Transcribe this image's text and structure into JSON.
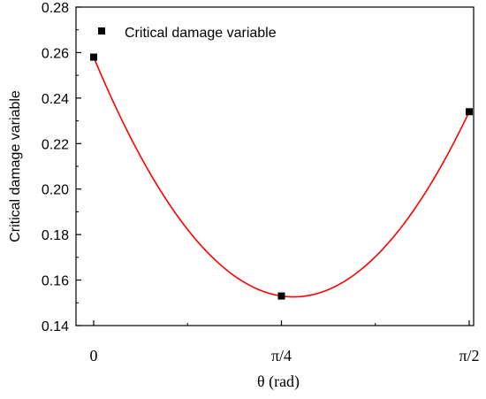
{
  "chart_data": {
    "type": "scatter",
    "title": "",
    "xlabel": "θ (rad)",
    "ylabel": "Critical damage variable",
    "x_categories": [
      "0",
      "π/4",
      "π/2"
    ],
    "xlim": [
      0,
      1.5708
    ],
    "ylim": [
      0.14,
      0.28
    ],
    "y_ticks": [
      0.14,
      0.16,
      0.18,
      0.2,
      0.22,
      0.24,
      0.26,
      0.28
    ],
    "y_tick_labels": [
      "0.14",
      "0.16",
      "0.18",
      "0.20",
      "0.22",
      "0.24",
      "0.26",
      "0.28"
    ],
    "grid": false,
    "legend_position": "top-left",
    "series": [
      {
        "name": "Critical damage variable",
        "marker": "square",
        "color": "#000000",
        "x": [
          0,
          0.7854,
          1.5708
        ],
        "y": [
          0.258,
          0.153,
          0.234
        ]
      }
    ],
    "fit_curve": {
      "color": "#ff0000",
      "type": "quadratic",
      "points": [
        [
          0,
          0.258
        ],
        [
          0.7854,
          0.153
        ],
        [
          1.5708,
          0.234
        ]
      ]
    }
  }
}
